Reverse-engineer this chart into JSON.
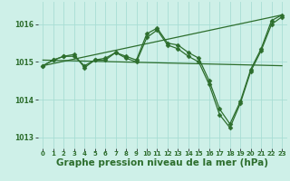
{
  "background_color": "#cef0e8",
  "grid_color": "#a8ddd4",
  "line_color": "#2d6e2d",
  "marker_color": "#2d6e2d",
  "xlabel": "Graphe pression niveau de la mer (hPa)",
  "xlabel_fontsize": 7.5,
  "xlim": [
    -0.5,
    23.5
  ],
  "ylim": [
    1012.7,
    1016.6
  ],
  "yticks": [
    1013,
    1014,
    1015,
    1016
  ],
  "xticks": [
    0,
    1,
    2,
    3,
    4,
    5,
    6,
    7,
    8,
    9,
    10,
    11,
    12,
    13,
    14,
    15,
    16,
    17,
    18,
    19,
    20,
    21,
    22,
    23
  ],
  "series": [
    {
      "x": [
        0,
        1,
        2,
        3,
        4,
        5,
        6,
        7,
        8,
        9,
        10,
        11,
        12,
        13,
        14,
        15,
        16,
        17,
        18,
        19,
        20,
        21,
        22,
        23
      ],
      "y": [
        1014.9,
        1015.05,
        1015.15,
        1015.15,
        1014.9,
        1015.05,
        1015.1,
        1015.25,
        1015.15,
        1015.05,
        1015.75,
        1015.9,
        1015.5,
        1015.45,
        1015.25,
        1015.1,
        1014.5,
        1013.75,
        1013.35,
        1013.95,
        1014.8,
        1015.35,
        1016.1,
        1016.25
      ],
      "marker": "D",
      "markersize": 2.5,
      "linewidth": 0.9
    },
    {
      "x": [
        0,
        23
      ],
      "y": [
        1014.9,
        1016.25
      ],
      "marker": null,
      "markersize": 0,
      "linewidth": 0.9
    },
    {
      "x": [
        0,
        23
      ],
      "y": [
        1015.05,
        1014.9
      ],
      "marker": null,
      "markersize": 0,
      "linewidth": 0.9
    },
    {
      "x": [
        0,
        1,
        2,
        3,
        4,
        5,
        6,
        7,
        8,
        9,
        10,
        11,
        12,
        13,
        14,
        15,
        16,
        17,
        18,
        19,
        20,
        21,
        22,
        23
      ],
      "y": [
        1014.9,
        1015.05,
        1015.15,
        1015.2,
        1014.85,
        1015.05,
        1015.05,
        1015.25,
        1015.1,
        1015.0,
        1015.65,
        1015.85,
        1015.45,
        1015.35,
        1015.15,
        1015.0,
        1014.4,
        1013.6,
        1013.25,
        1013.9,
        1014.75,
        1015.3,
        1016.0,
        1016.2
      ],
      "marker": "D",
      "markersize": 2.5,
      "linewidth": 0.9
    }
  ]
}
